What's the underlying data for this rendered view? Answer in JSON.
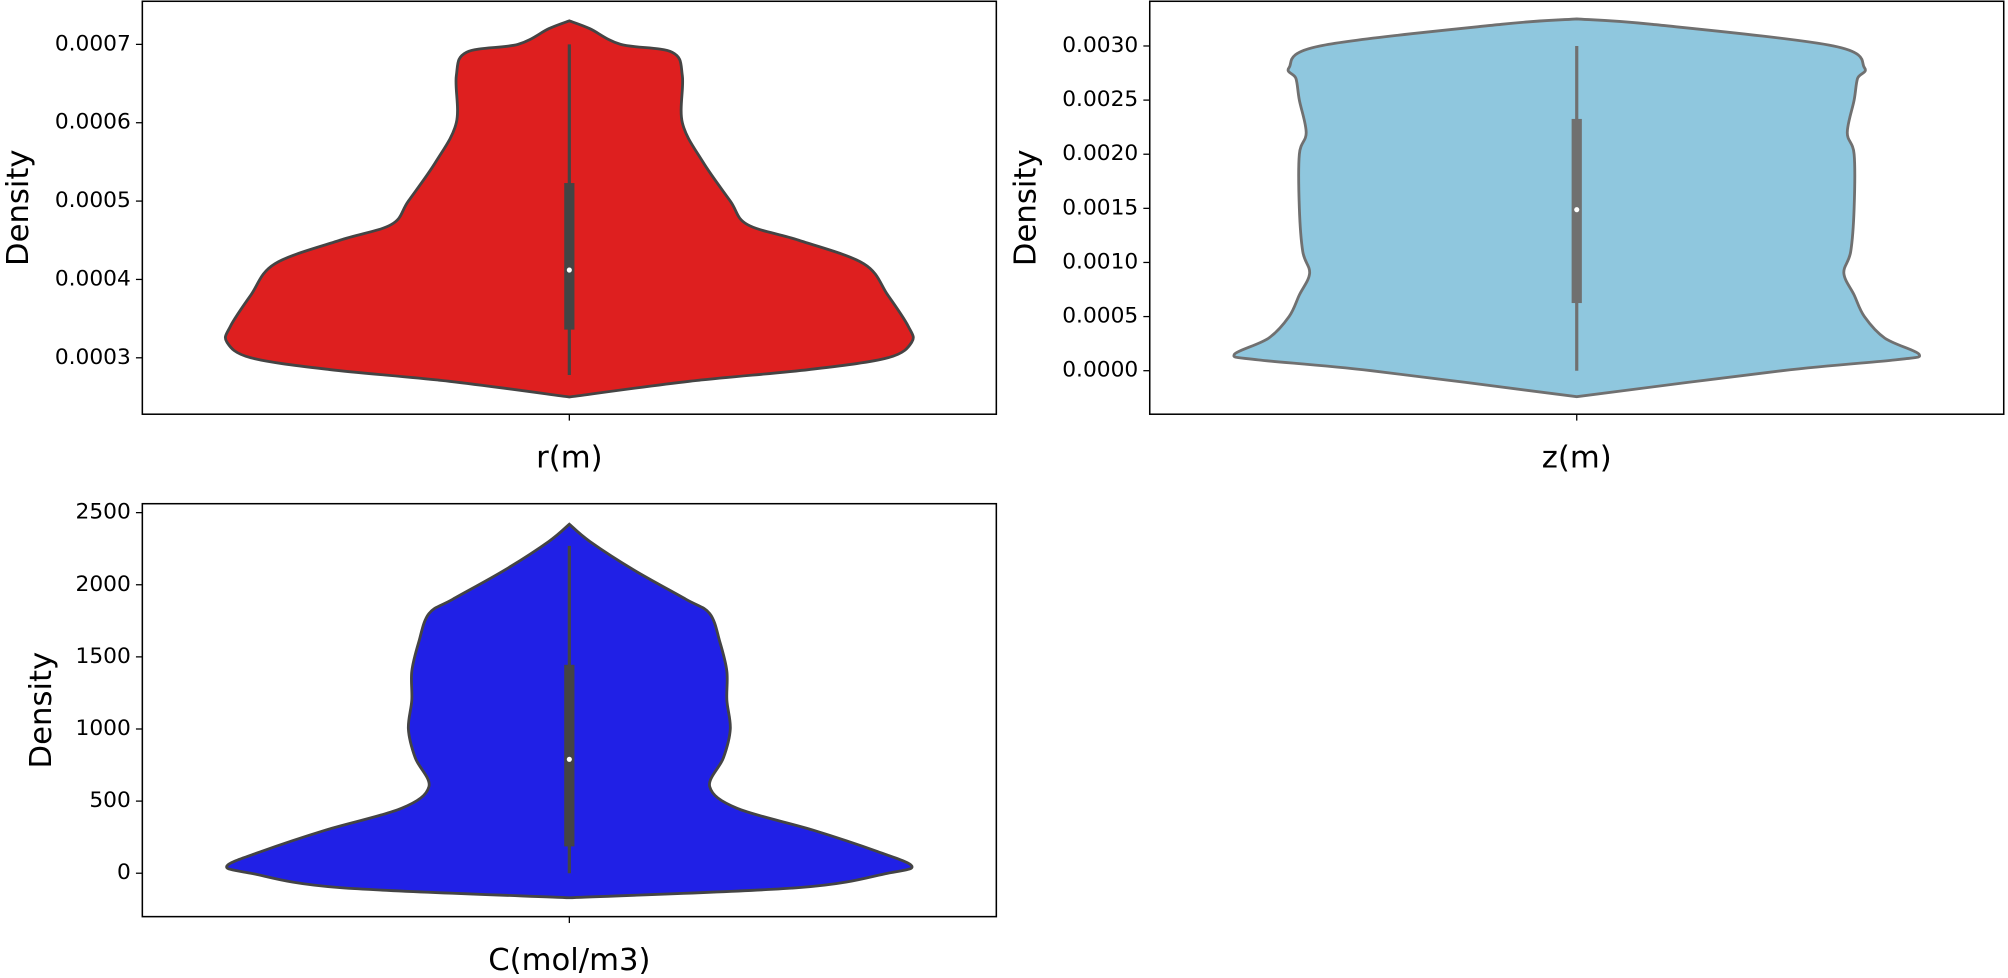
{
  "chart_data": [
    {
      "type": "violin",
      "xlabel": "r(m)",
      "ylabel": "Density",
      "color": "#de1f1f",
      "edgecolor": "#444444",
      "ylim": [
        0.000228,
        0.000755
      ],
      "yticks": [
        0.0003,
        0.0004,
        0.0005,
        0.0006,
        0.0007
      ],
      "violin_y": [
        0.00073,
        0.00072,
        0.0007,
        0.00069,
        0.00066,
        0.0006,
        0.00055,
        0.0005,
        0.00047,
        0.00045,
        0.00042,
        0.00038,
        0.00034,
        0.00032,
        0.0003,
        0.000285,
        0.00027,
        0.00025
      ],
      "violin_width": [
        0,
        0.06,
        0.15,
        0.3,
        0.33,
        0.33,
        0.39,
        0.47,
        0.52,
        0.67,
        0.86,
        0.93,
        0.99,
        1.0,
        0.93,
        0.7,
        0.35,
        0
      ],
      "box": {
        "whislo": 0.000278,
        "q1": 0.000336,
        "median": 0.000412,
        "q3": 0.000523,
        "whishi": 0.0007
      }
    },
    {
      "type": "violin",
      "xlabel": "z(m)",
      "ylabel": "Density",
      "color": "#8fc7de",
      "edgecolor": "#707070",
      "ylim": [
        -0.000402,
        0.003413
      ],
      "yticks": [
        {
          "value": 0,
          "label": "0.0000"
        },
        0.0005,
        {
          "value": 0.001,
          "label": "0.0010"
        },
        0.0015,
        {
          "value": 0.002,
          "label": "0.0020"
        },
        0.0025,
        {
          "value": 0.003,
          "label": "0.0030"
        }
      ],
      "violin_y": [
        0.00325,
        0.0032,
        0.003,
        0.0028,
        0.0027,
        0.0025,
        0.0022,
        0.002,
        0.0015,
        0.0011,
        0.0009,
        0.0007,
        0.0005,
        0.0003,
        0.00015,
        0.0001,
        0.0,
        -0.00024
      ],
      "violin_width": [
        0,
        0.22,
        0.75,
        0.84,
        0.82,
        0.81,
        0.79,
        0.81,
        0.81,
        0.8,
        0.78,
        0.81,
        0.84,
        0.9,
        1.0,
        0.93,
        0.6,
        0
      ],
      "box": {
        "whislo": 0,
        "q1": 0.000625,
        "median": 0.001488,
        "q3": 0.002326,
        "whishi": 0.003
      }
    },
    {
      "type": "violin",
      "xlabel": "C(mol/m3)",
      "ylabel": "Density",
      "color": "#2020e6",
      "edgecolor": "#444444",
      "ylim": [
        -301,
        2562
      ],
      "yticks": [
        0,
        500,
        1000,
        1500,
        2000,
        2500
      ],
      "violin_y": [
        2420,
        2300,
        2100,
        1900,
        1800,
        1600,
        1400,
        1200,
        1000,
        800,
        600,
        450,
        300,
        150,
        50,
        0,
        -100,
        -170
      ],
      "violin_width": [
        0,
        0.06,
        0.19,
        0.34,
        0.41,
        0.44,
        0.46,
        0.46,
        0.47,
        0.45,
        0.41,
        0.49,
        0.71,
        0.9,
        1.0,
        0.93,
        0.67,
        0
      ],
      "box": {
        "whislo": 0,
        "q1": 186,
        "median": 790,
        "q3": 1445,
        "whishi": 2270
      }
    }
  ]
}
